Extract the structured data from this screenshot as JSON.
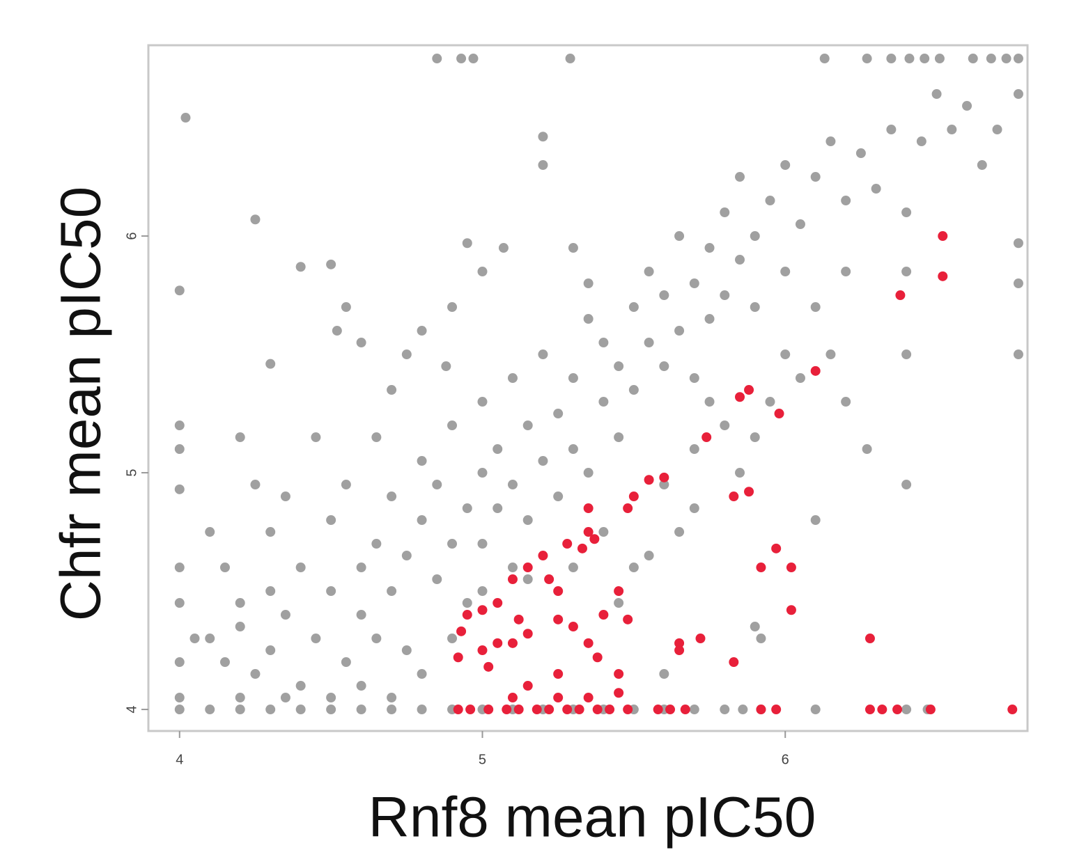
{
  "chart_data": {
    "type": "scatter",
    "x_label": "Rnf8 mean pIC50",
    "y_label": "Chfr mean pIC50",
    "xlim": [
      3.897,
      6.8
    ],
    "ylim": [
      3.909,
      6.806
    ],
    "xticks": [
      4,
      5,
      6
    ],
    "yticks": [
      4,
      5,
      6
    ],
    "grid": false,
    "series": [
      {
        "color": "#a0a0a0",
        "x": [
          4.85,
          4.93,
          4.97,
          5.29,
          6.13,
          6.27,
          6.35,
          6.41,
          6.46,
          6.51,
          6.62,
          6.68,
          6.73,
          6.77,
          4.02,
          4.25,
          4.0,
          4.4,
          4.5,
          4.55,
          4.52,
          4.3,
          4.2,
          4.0,
          4.0,
          4.0,
          4.0,
          4.0,
          4.0,
          4.0,
          4.0,
          4.1,
          4.2,
          4.3,
          4.4,
          4.5,
          4.6,
          4.7,
          4.8,
          4.9,
          5.0,
          5.1,
          5.2,
          5.3,
          5.4,
          5.5,
          5.6,
          5.7,
          5.8,
          5.86,
          5.92,
          6.1,
          6.4,
          6.47,
          4.1,
          4.15,
          4.2,
          4.25,
          4.3,
          4.3,
          4.35,
          4.4,
          4.4,
          4.45,
          4.5,
          4.5,
          4.55,
          4.6,
          4.6,
          4.65,
          4.65,
          4.7,
          4.7,
          4.75,
          4.75,
          4.8,
          4.8,
          4.85,
          4.85,
          4.9,
          4.9,
          4.95,
          4.95,
          5.0,
          5.0,
          5.0,
          5.05,
          5.05,
          5.1,
          5.1,
          5.15,
          5.15,
          5.2,
          5.2,
          5.25,
          5.25,
          5.3,
          5.3,
          5.35,
          5.35,
          5.4,
          5.4,
          5.45,
          5.45,
          5.5,
          5.5,
          5.55,
          5.55,
          5.6,
          5.6,
          5.65,
          5.65,
          5.7,
          5.7,
          5.75,
          5.75,
          5.8,
          5.8,
          5.85,
          5.85,
          5.9,
          5.9,
          5.95,
          6.0,
          6.0,
          6.05,
          6.1,
          6.1,
          6.15,
          6.2,
          6.25,
          6.3,
          6.35,
          6.4,
          6.45,
          6.5,
          6.55,
          6.6,
          6.65,
          6.7,
          6.77,
          6.77,
          6.77,
          6.77,
          6.4,
          6.4,
          6.4,
          6.27,
          6.2,
          6.1,
          5.9,
          5.92,
          5.6,
          5.55,
          5.3,
          5.2,
          5.2,
          4.6,
          4.8,
          4.88,
          4.95,
          5.07,
          5.0,
          4.9,
          5.35,
          4.1,
          4.15,
          4.35,
          4.45,
          4.25,
          4.05,
          4.55,
          4.65,
          4.7,
          4.75,
          4.2,
          4.3,
          4.6,
          4.7,
          4.8,
          4.9,
          4.5,
          4.35,
          4.2,
          5.0,
          5.1,
          5.15,
          5.3,
          5.4,
          5.45,
          5.5,
          5.6,
          5.65,
          5.7,
          5.8,
          5.85,
          5.95,
          6.0,
          5.75,
          5.7,
          5.9,
          6.05,
          6.15,
          6.2
        ],
        "y": [
          6.75,
          6.75,
          6.75,
          6.75,
          6.75,
          6.75,
          6.75,
          6.75,
          6.75,
          6.75,
          6.75,
          6.75,
          6.75,
          6.75,
          6.5,
          6.07,
          5.77,
          5.87,
          5.88,
          5.7,
          5.6,
          5.46,
          5.15,
          5.2,
          5.1,
          4.93,
          4.6,
          4.45,
          4.2,
          4.05,
          4.0,
          4,
          4,
          4,
          4,
          4,
          4,
          4,
          4,
          4,
          4,
          4,
          4,
          4,
          4,
          4,
          4,
          4,
          4,
          4,
          4,
          4,
          4,
          4,
          4.3,
          4.2,
          4.35,
          4.15,
          4.5,
          4.25,
          4.4,
          4.1,
          4.6,
          4.3,
          4.5,
          4.8,
          4.2,
          4.6,
          4.4,
          4.7,
          4.3,
          4.9,
          4.5,
          4.65,
          4.25,
          4.8,
          5.05,
          4.55,
          4.95,
          5.2,
          4.7,
          4.85,
          4.45,
          5.0,
          5.3,
          4.7,
          5.1,
          4.85,
          5.4,
          4.95,
          5.2,
          4.8,
          5.05,
          5.5,
          5.25,
          4.9,
          5.4,
          5.1,
          5.65,
          5.0,
          5.3,
          5.55,
          5.45,
          5.15,
          5.7,
          5.35,
          5.55,
          5.85,
          5.45,
          5.75,
          6.0,
          5.6,
          5.8,
          5.4,
          5.95,
          5.65,
          6.1,
          5.75,
          5.9,
          6.25,
          5.7,
          6.0,
          6.15,
          5.85,
          6.3,
          6.05,
          6.25,
          5.7,
          6.4,
          6.15,
          6.35,
          6.2,
          6.45,
          6.1,
          6.4,
          6.6,
          6.45,
          6.55,
          6.3,
          6.45,
          6.6,
          5.97,
          5.8,
          5.5,
          5.85,
          5.5,
          4.95,
          5.1,
          5.3,
          4.8,
          4.35,
          4.3,
          4.15,
          4.65,
          5.95,
          6.3,
          6.42,
          5.55,
          5.6,
          5.45,
          5.97,
          5.95,
          5.85,
          5.7,
          5.8,
          4.75,
          4.6,
          4.9,
          5.15,
          4.95,
          4.3,
          4.95,
          5.15,
          5.35,
          5.5,
          4.45,
          4.75,
          4.1,
          4.05,
          4.15,
          4.3,
          4.05,
          4.05,
          4.05,
          4.5,
          4.6,
          4.55,
          4.6,
          4.75,
          4.45,
          4.6,
          4.95,
          4.75,
          4.85,
          5.2,
          5.0,
          5.3,
          5.5,
          5.3,
          5.1,
          5.15,
          5.4,
          5.5,
          5.85
        ]
      },
      {
        "color": "#e8203a",
        "x": [
          6.52,
          6.52,
          6.38,
          6.1,
          5.98,
          5.88,
          5.85,
          5.74,
          5.88,
          5.83,
          5.6,
          5.55,
          5.5,
          5.48,
          5.35,
          5.35,
          5.33,
          5.37,
          5.28,
          5.2,
          5.15,
          5.1,
          5.22,
          5.25,
          5.05,
          5.0,
          5.12,
          5.25,
          5.15,
          4.95,
          4.93,
          5.05,
          5.1,
          5.0,
          5.02,
          4.92,
          5.3,
          5.4,
          5.45,
          5.48,
          5.35,
          5.38,
          5.45,
          5.25,
          5.15,
          5.1,
          5.25,
          5.35,
          5.45,
          5.65,
          5.72,
          5.65,
          5.83,
          5.92,
          5.97,
          6.02,
          6.02,
          6.28,
          4.92,
          4.96,
          5.02,
          5.08,
          5.12,
          5.18,
          5.22,
          5.28,
          5.32,
          5.38,
          5.42,
          5.48,
          5.58,
          5.62,
          5.67,
          5.92,
          5.97,
          6.28,
          6.32,
          6.37,
          6.48,
          6.75
        ],
        "y": [
          6.0,
          5.83,
          5.75,
          5.43,
          5.25,
          5.35,
          5.32,
          5.15,
          4.92,
          4.9,
          4.98,
          4.97,
          4.9,
          4.85,
          4.85,
          4.75,
          4.68,
          4.72,
          4.7,
          4.65,
          4.6,
          4.55,
          4.55,
          4.5,
          4.45,
          4.42,
          4.38,
          4.38,
          4.32,
          4.4,
          4.33,
          4.28,
          4.28,
          4.25,
          4.18,
          4.22,
          4.35,
          4.4,
          4.5,
          4.38,
          4.28,
          4.22,
          4.15,
          4.15,
          4.1,
          4.05,
          4.05,
          4.05,
          4.07,
          4.28,
          4.3,
          4.25,
          4.2,
          4.6,
          4.68,
          4.6,
          4.42,
          4.3,
          4,
          4,
          4,
          4,
          4,
          4,
          4,
          4,
          4,
          4,
          4,
          4,
          4,
          4,
          4,
          4,
          4,
          4,
          4,
          4,
          4,
          4
        ]
      }
    ]
  }
}
